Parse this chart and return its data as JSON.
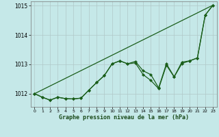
{
  "xlabel": "Graphe pression niveau de la mer (hPa)",
  "background_color": "#c5e8e8",
  "grid_color": "#b0c8c8",
  "line_color": "#1a5e1a",
  "marker_color": "#1a5e1a",
  "ylim": [
    1011.55,
    1015.15
  ],
  "xlim": [
    -0.5,
    23.5
  ],
  "yticks": [
    1012,
    1013,
    1014,
    1015
  ],
  "xticks": [
    0,
    1,
    2,
    3,
    4,
    5,
    6,
    7,
    8,
    9,
    10,
    11,
    12,
    13,
    14,
    15,
    16,
    17,
    18,
    19,
    20,
    21,
    22,
    23
  ],
  "series1": [
    1012.0,
    1011.88,
    1011.78,
    1011.88,
    1011.83,
    1011.82,
    1011.85,
    1012.12,
    1012.38,
    1012.62,
    1013.02,
    1013.12,
    1013.02,
    1013.1,
    1012.78,
    1012.65,
    1012.2,
    1013.02,
    1012.58,
    1013.08,
    1013.12,
    1013.22,
    1014.68,
    1015.02
  ],
  "series2": [
    1012.0,
    1011.88,
    1011.78,
    1011.88,
    1011.83,
    1011.82,
    1011.85,
    1012.12,
    1012.38,
    1012.62,
    1013.02,
    1013.12,
    1013.02,
    1013.05,
    1012.65,
    1012.45,
    1012.17,
    1012.97,
    1012.57,
    1013.03,
    1013.12,
    1013.22,
    1014.68,
    1015.02
  ],
  "series3_x": [
    0,
    23
  ],
  "series3_y": [
    1012.0,
    1015.02
  ]
}
